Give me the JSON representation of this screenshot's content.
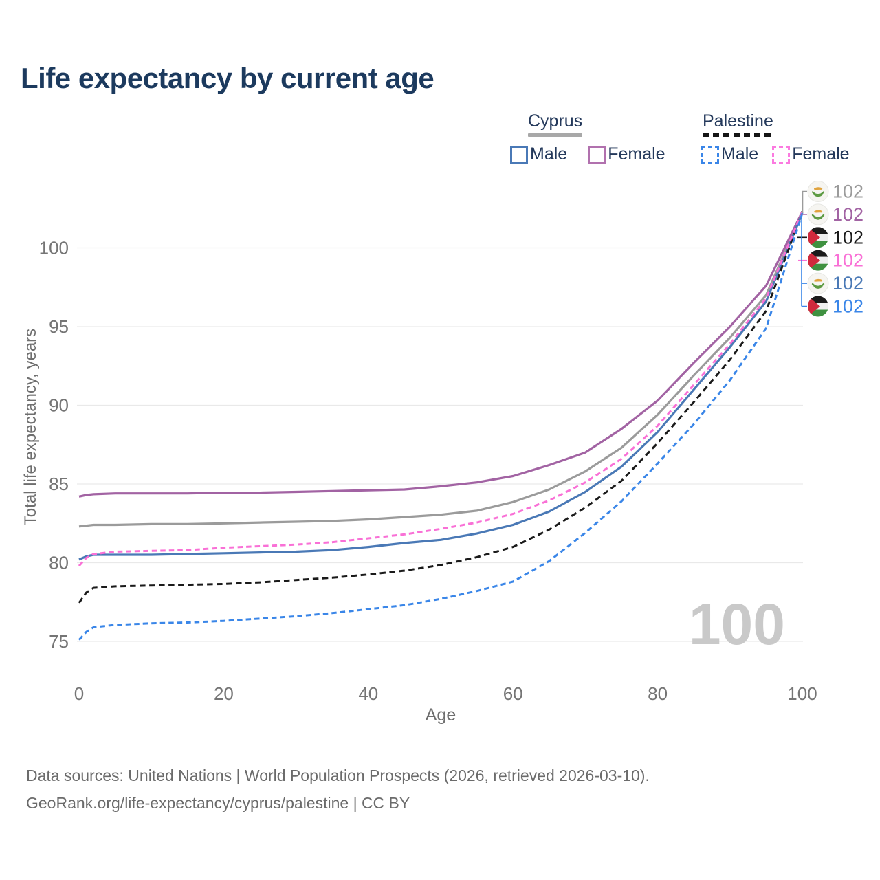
{
  "title": "Life expectancy by current age",
  "legend": {
    "groups": [
      {
        "label": "Cyprus",
        "line_style": "solid",
        "underline_color": "#a8a8a8",
        "items": [
          {
            "label": "Male",
            "color": "#4a79b6",
            "box_style": "solid"
          },
          {
            "label": "Female",
            "color": "#b171ae",
            "box_style": "solid"
          }
        ]
      },
      {
        "label": "Palestine",
        "line_style": "dashed",
        "underline_color": "#151515",
        "items": [
          {
            "label": "Male",
            "color": "#3a86e8",
            "box_style": "dashed"
          },
          {
            "label": "Female",
            "color": "#fb7ae0",
            "box_style": "dashed"
          }
        ]
      }
    ]
  },
  "watermark": "100",
  "footer": {
    "line1": "Data sources: United Nations | World Population Prospects (2026, retrieved 2026-03-10).",
    "line2": "GeoRank.org/life-expectancy/cyprus/palestine | CC BY"
  },
  "chart_data": {
    "type": "line",
    "title": "Life expectancy by current age",
    "xlabel": "Age",
    "ylabel": "Total life expectancy, years",
    "xlim": [
      0,
      100
    ],
    "ylim": [
      73.5,
      103.5
    ],
    "x_ticks": [
      0,
      20,
      40,
      60,
      80,
      100
    ],
    "y_ticks": [
      75,
      80,
      85,
      90,
      95,
      100
    ],
    "grid": "horizontal-only",
    "gridline_color": "#e9e9e9",
    "tick_label_color": "#757575",
    "ages": [
      0,
      1,
      2,
      5,
      10,
      15,
      20,
      25,
      30,
      35,
      40,
      45,
      50,
      55,
      60,
      65,
      70,
      75,
      80,
      85,
      90,
      95,
      100
    ],
    "series": [
      {
        "id": "cyprus_total",
        "name": "Cyprus",
        "country": "Cyprus",
        "sex": "total",
        "line_style": "solid",
        "color": "#9b9b9b",
        "end_label": "102",
        "values": [
          82.3,
          82.35,
          82.4,
          82.4,
          82.45,
          82.45,
          82.5,
          82.55,
          82.6,
          82.65,
          82.75,
          82.9,
          83.05,
          83.3,
          83.85,
          84.65,
          85.8,
          87.3,
          89.4,
          91.9,
          94.3,
          97.0,
          102.25
        ]
      },
      {
        "id": "cyprus_female",
        "name": "Cyprus Female",
        "country": "Cyprus",
        "sex": "female",
        "line_style": "solid",
        "color": "#a263a3",
        "end_label": "102",
        "values": [
          84.2,
          84.3,
          84.35,
          84.4,
          84.4,
          84.4,
          84.45,
          84.45,
          84.5,
          84.55,
          84.6,
          84.65,
          84.85,
          85.1,
          85.5,
          86.2,
          87.0,
          88.5,
          90.3,
          92.7,
          95.0,
          97.6,
          102.3
        ]
      },
      {
        "id": "palestine_total",
        "name": "Palestine",
        "country": "Palestine",
        "sex": "total",
        "line_style": "dashed",
        "color": "#1a1a1a",
        "end_label": "102",
        "values": [
          77.45,
          78.1,
          78.4,
          78.5,
          78.55,
          78.6,
          78.65,
          78.75,
          78.9,
          79.05,
          79.25,
          79.5,
          79.85,
          80.35,
          81.0,
          82.1,
          83.5,
          85.2,
          87.6,
          90.2,
          92.9,
          96.0,
          102.3
        ]
      },
      {
        "id": "palestine_female",
        "name": "Palestine Female",
        "country": "Palestine",
        "sex": "female",
        "line_style": "dashed",
        "color": "#f970d6",
        "end_label": "102",
        "values": [
          79.8,
          80.3,
          80.55,
          80.7,
          80.75,
          80.8,
          80.95,
          81.05,
          81.15,
          81.3,
          81.55,
          81.8,
          82.15,
          82.55,
          83.1,
          83.95,
          85.1,
          86.6,
          88.7,
          91.3,
          93.9,
          96.8,
          102.3
        ]
      },
      {
        "id": "cyprus_male",
        "name": "Cyprus Male",
        "country": "Cyprus",
        "sex": "male",
        "line_style": "solid",
        "color": "#4a79b6",
        "end_label": "102",
        "values": [
          80.2,
          80.4,
          80.5,
          80.5,
          80.5,
          80.55,
          80.6,
          80.65,
          80.7,
          80.8,
          81.0,
          81.25,
          81.45,
          81.85,
          82.4,
          83.25,
          84.5,
          86.1,
          88.3,
          91.0,
          93.7,
          96.6,
          102.2
        ]
      },
      {
        "id": "palestine_male",
        "name": "Palestine Male",
        "country": "Palestine",
        "sex": "male",
        "line_style": "dashed",
        "color": "#3a86e8",
        "end_label": "102",
        "values": [
          75.1,
          75.6,
          75.9,
          76.05,
          76.15,
          76.2,
          76.3,
          76.45,
          76.6,
          76.8,
          77.05,
          77.3,
          77.7,
          78.2,
          78.8,
          80.1,
          81.9,
          83.9,
          86.3,
          88.8,
          91.6,
          94.9,
          102.2
        ]
      }
    ],
    "legend_position": "top-right"
  }
}
